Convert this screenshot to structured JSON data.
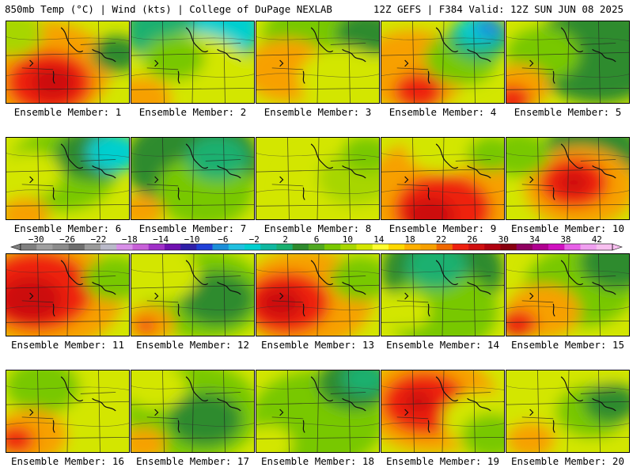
{
  "header": {
    "left": "850mb Temp (°C) | Wind (kts) | College of DuPage NEXLAB",
    "right": "12Z GEFS | F384 Valid: 12Z SUN JUN 08 2025"
  },
  "member_label_prefix": "Ensemble Member:",
  "members": [
    {
      "id": 1,
      "blobs": [
        [
          "#f7a000",
          0.3,
          0.6,
          0.55
        ],
        [
          "#ee2010",
          0.35,
          0.75,
          0.35
        ],
        [
          "#cc0808",
          0.38,
          0.75,
          0.18
        ],
        [
          "#a7d600",
          0.05,
          0.15,
          0.25
        ],
        [
          "#2e8b2e",
          0.9,
          0.4,
          0.2
        ]
      ]
    },
    {
      "id": 2,
      "blobs": [
        [
          "#1ab070",
          0.5,
          0.1,
          0.55
        ],
        [
          "#00cfcf",
          0.78,
          0.08,
          0.28
        ],
        [
          "#d3e600",
          0.5,
          0.7,
          0.5
        ],
        [
          "#78c800",
          0.35,
          0.45,
          0.25
        ],
        [
          "#f7a000",
          0.08,
          0.95,
          0.25
        ]
      ]
    },
    {
      "id": 3,
      "blobs": [
        [
          "#78c800",
          0.5,
          0.2,
          0.45
        ],
        [
          "#2e8b2e",
          0.9,
          0.15,
          0.25
        ],
        [
          "#f7a000",
          0.25,
          0.6,
          0.35
        ],
        [
          "#d3e600",
          0.7,
          0.7,
          0.35
        ]
      ]
    },
    {
      "id": 4,
      "blobs": [
        [
          "#f7a000",
          0.25,
          0.6,
          0.45
        ],
        [
          "#ee2010",
          0.3,
          0.85,
          0.2
        ],
        [
          "#78c800",
          0.65,
          0.45,
          0.3
        ],
        [
          "#1ab070",
          0.8,
          0.2,
          0.25
        ],
        [
          "#00cfcf",
          0.8,
          0.1,
          0.18
        ],
        [
          "#1d8fd8",
          0.88,
          0.08,
          0.12
        ]
      ]
    },
    {
      "id": 5,
      "blobs": [
        [
          "#2e8b2e",
          0.75,
          0.4,
          0.55
        ],
        [
          "#78c800",
          0.3,
          0.4,
          0.3
        ],
        [
          "#f7a000",
          0.1,
          0.8,
          0.25
        ],
        [
          "#ee2010",
          0.05,
          0.95,
          0.15
        ]
      ]
    },
    {
      "id": 6,
      "blobs": [
        [
          "#78c800",
          0.45,
          0.4,
          0.45
        ],
        [
          "#2e8b2e",
          0.7,
          0.2,
          0.3
        ],
        [
          "#00cfcf",
          0.88,
          0.18,
          0.22
        ],
        [
          "#f7a000",
          0.15,
          0.95,
          0.2
        ],
        [
          "#d3e600",
          0.2,
          0.45,
          0.25
        ]
      ]
    },
    {
      "id": 7,
      "blobs": [
        [
          "#2e8b2e",
          0.5,
          0.3,
          0.55
        ],
        [
          "#78c800",
          0.6,
          0.65,
          0.4
        ],
        [
          "#f7a000",
          0.08,
          0.9,
          0.18
        ],
        [
          "#1ab070",
          0.7,
          0.25,
          0.25
        ]
      ]
    },
    {
      "id": 8,
      "blobs": [
        [
          "#d3e600",
          0.6,
          0.6,
          0.4
        ],
        [
          "#a7d600",
          0.8,
          0.5,
          0.3
        ],
        [
          "#78c800",
          0.9,
          0.2,
          0.2
        ]
      ]
    },
    {
      "id": 9,
      "blobs": [
        [
          "#f7a000",
          0.5,
          0.7,
          0.65
        ],
        [
          "#ee2010",
          0.5,
          0.88,
          0.4
        ],
        [
          "#cc0808",
          0.4,
          0.95,
          0.2
        ],
        [
          "#d3e600",
          0.5,
          0.1,
          0.3
        ],
        [
          "#78c800",
          0.9,
          0.2,
          0.2
        ]
      ]
    },
    {
      "id": 10,
      "blobs": [
        [
          "#2e8b2e",
          0.7,
          0.2,
          0.4
        ],
        [
          "#f7a000",
          0.6,
          0.6,
          0.45
        ],
        [
          "#ee2010",
          0.55,
          0.55,
          0.28
        ],
        [
          "#cc0808",
          0.55,
          0.55,
          0.12
        ],
        [
          "#78c800",
          0.1,
          0.2,
          0.25
        ]
      ]
    },
    {
      "id": 11,
      "blobs": [
        [
          "#f7a000",
          0.35,
          0.5,
          0.6
        ],
        [
          "#ee2010",
          0.25,
          0.45,
          0.45
        ],
        [
          "#cc0808",
          0.2,
          0.55,
          0.25
        ],
        [
          "#78c800",
          0.88,
          0.3,
          0.25
        ]
      ]
    },
    {
      "id": 12,
      "blobs": [
        [
          "#78c800",
          0.6,
          0.5,
          0.5
        ],
        [
          "#2e8b2e",
          0.7,
          0.55,
          0.3
        ],
        [
          "#f7a000",
          0.15,
          0.85,
          0.2
        ],
        [
          "#ee2010",
          0.12,
          0.88,
          0.08
        ],
        [
          "#d3e600",
          0.25,
          0.25,
          0.3
        ]
      ]
    },
    {
      "id": 13,
      "blobs": [
        [
          "#f7a000",
          0.4,
          0.55,
          0.55
        ],
        [
          "#ee2010",
          0.25,
          0.6,
          0.35
        ],
        [
          "#cc0808",
          0.2,
          0.6,
          0.18
        ],
        [
          "#78c800",
          0.85,
          0.3,
          0.25
        ]
      ]
    },
    {
      "id": 14,
      "blobs": [
        [
          "#2e8b2e",
          0.5,
          0.2,
          0.5
        ],
        [
          "#78c800",
          0.5,
          0.7,
          0.45
        ],
        [
          "#1ab070",
          0.45,
          0.15,
          0.25
        ],
        [
          "#d3e600",
          0.2,
          0.7,
          0.2
        ]
      ]
    },
    {
      "id": 15,
      "blobs": [
        [
          "#78c800",
          0.6,
          0.4,
          0.45
        ],
        [
          "#2e8b2e",
          0.9,
          0.1,
          0.3
        ],
        [
          "#f7a000",
          0.3,
          0.7,
          0.3
        ],
        [
          "#ee2010",
          0.1,
          0.85,
          0.15
        ]
      ]
    },
    {
      "id": 16,
      "blobs": [
        [
          "#d3e600",
          0.55,
          0.45,
          0.5
        ],
        [
          "#78c800",
          0.3,
          0.2,
          0.3
        ],
        [
          "#f7a000",
          0.2,
          0.8,
          0.3
        ],
        [
          "#ee2010",
          0.08,
          0.85,
          0.15
        ]
      ]
    },
    {
      "id": 17,
      "blobs": [
        [
          "#78c800",
          0.5,
          0.5,
          0.55
        ],
        [
          "#2e8b2e",
          0.6,
          0.6,
          0.3
        ],
        [
          "#d3e600",
          0.2,
          0.2,
          0.25
        ],
        [
          "#f7a000",
          0.1,
          0.9,
          0.18
        ]
      ]
    },
    {
      "id": 18,
      "blobs": [
        [
          "#78c800",
          0.5,
          0.6,
          0.55
        ],
        [
          "#2e8b2e",
          0.8,
          0.15,
          0.3
        ],
        [
          "#1ab070",
          0.88,
          0.1,
          0.18
        ],
        [
          "#d3e600",
          0.1,
          0.9,
          0.2
        ]
      ]
    },
    {
      "id": 19,
      "blobs": [
        [
          "#f7a000",
          0.4,
          0.4,
          0.55
        ],
        [
          "#ee2010",
          0.35,
          0.4,
          0.35
        ],
        [
          "#cc0808",
          0.3,
          0.38,
          0.12
        ],
        [
          "#d3e600",
          0.8,
          0.6,
          0.3
        ],
        [
          "#78c800",
          0.9,
          0.8,
          0.25
        ]
      ]
    },
    {
      "id": 20,
      "blobs": [
        [
          "#d3e600",
          0.5,
          0.5,
          0.5
        ],
        [
          "#78c800",
          0.7,
          0.5,
          0.3
        ],
        [
          "#2e8b2e",
          0.85,
          0.4,
          0.22
        ],
        [
          "#f7a000",
          0.2,
          0.85,
          0.2
        ]
      ]
    }
  ],
  "colorbar": {
    "labels": [
      "−30",
      "−26",
      "−22",
      "−18",
      "−14",
      "−10",
      "−6",
      "−2",
      "2",
      "6",
      "10",
      "14",
      "18",
      "22",
      "26",
      "30",
      "34",
      "38",
      "42"
    ],
    "colors": [
      "#808080",
      "#a0a0a0",
      "#8c8c8c",
      "#6e6e6e",
      "#9a9a9a",
      "#b9b9c9",
      "#d890e8",
      "#c860d8",
      "#a030c8",
      "#7010b0",
      "#3020a8",
      "#2040d8",
      "#1d8fd8",
      "#20c0e0",
      "#00cfcf",
      "#10b8a0",
      "#1ab070",
      "#2e8b2e",
      "#50a820",
      "#78c800",
      "#a7d600",
      "#d3e600",
      "#ffff30",
      "#ffd800",
      "#ffb000",
      "#f7a000",
      "#f06800",
      "#ee2010",
      "#d01010",
      "#b00010",
      "#880010",
      "#900060",
      "#b00090",
      "#d010c0",
      "#e860e8",
      "#f0a0f0",
      "#f8c0f0"
    ]
  }
}
